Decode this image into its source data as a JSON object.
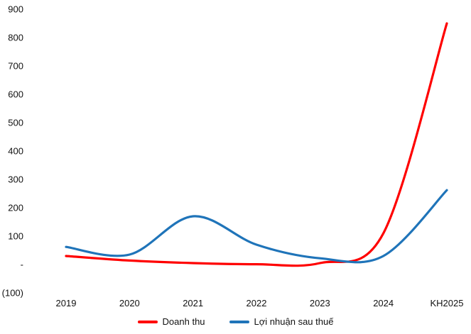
{
  "chart_data": {
    "type": "line",
    "title": "",
    "line_style": "smooth",
    "grid": false,
    "background": "#ffffff",
    "text_color": "#111111",
    "legend_position": "bottom",
    "categories": [
      "2019",
      "2020",
      "2021",
      "2022",
      "2023",
      "2024",
      "KH2025"
    ],
    "series": [
      {
        "name": "Doanh thu",
        "color": "#FF0000",
        "values": [
          30,
          14,
          5,
          1,
          5,
          110,
          850
        ]
      },
      {
        "name": "Lợi nhuận sau thuế",
        "color": "#1F74B9",
        "values": [
          62,
          35,
          170,
          70,
          22,
          30,
          262
        ]
      }
    ],
    "y_axis": {
      "min": -100,
      "max": 900,
      "step": 100,
      "tick_labels": [
        "900",
        "800",
        "700",
        "600",
        "500",
        "400",
        "300",
        "200",
        "100",
        "-",
        "(100)"
      ]
    }
  }
}
